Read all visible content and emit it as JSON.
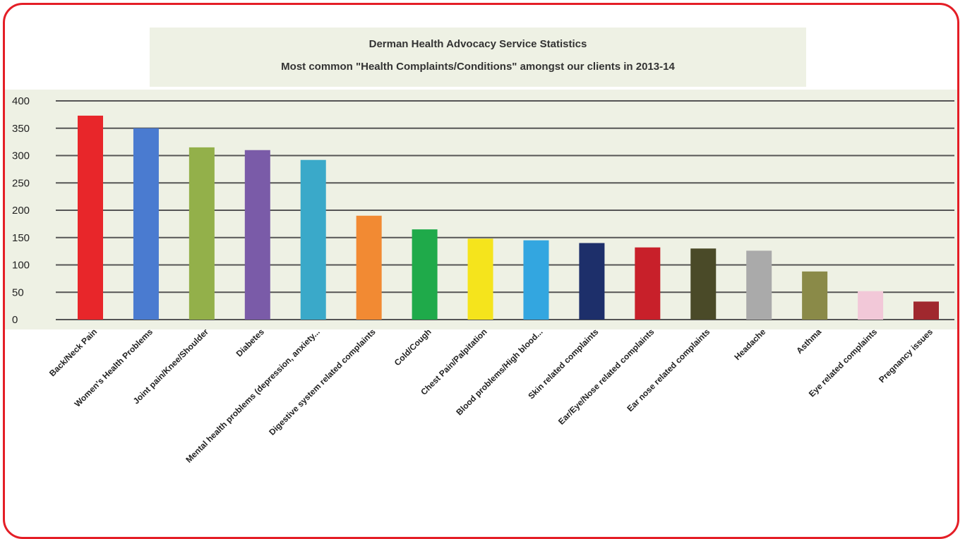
{
  "chart_data": {
    "type": "bar",
    "title": [
      "Derman Health Advocacy Service Statistics",
      "Most common \"Health Complaints/Conditions\" amongst our clients in 2013-14"
    ],
    "xlabel": "",
    "ylabel": "",
    "ylim": [
      0,
      400
    ],
    "yticks": [
      0,
      50,
      100,
      150,
      200,
      250,
      300,
      350,
      400
    ],
    "grid": true,
    "legend": "none",
    "categories": [
      "Back/Neck Pain",
      "Women's Health Problems",
      "Joint pain/Knee/Shoulder",
      "Diabetes",
      "Mental health problems (depression, anxiety...",
      "Digestive system related complaints",
      "Cold/Cough",
      "Chest Pain/Palpitation",
      "Blood problems/High blood...",
      "Skin related complaints",
      "Ear/Eye/Nose related complaints",
      "Ear nose related complaints",
      "Headache",
      "Asthma",
      "Eye related complaints",
      "Pregnancy issues"
    ],
    "values": [
      373,
      350,
      315,
      310,
      292,
      190,
      165,
      148,
      145,
      140,
      132,
      130,
      126,
      88,
      52,
      33
    ],
    "colors": [
      "#e8262a",
      "#4a7bd0",
      "#93b04a",
      "#7a5ba8",
      "#3aa9c9",
      "#f28a33",
      "#1faa4a",
      "#f5e41c",
      "#33a6e0",
      "#1d2f6a",
      "#c8202a",
      "#4a4a28",
      "#aaaaaa",
      "#8a8a48",
      "#f2c8d8",
      "#a0282e"
    ],
    "background": "#eef1e4",
    "frame_color": "#e41e26"
  }
}
